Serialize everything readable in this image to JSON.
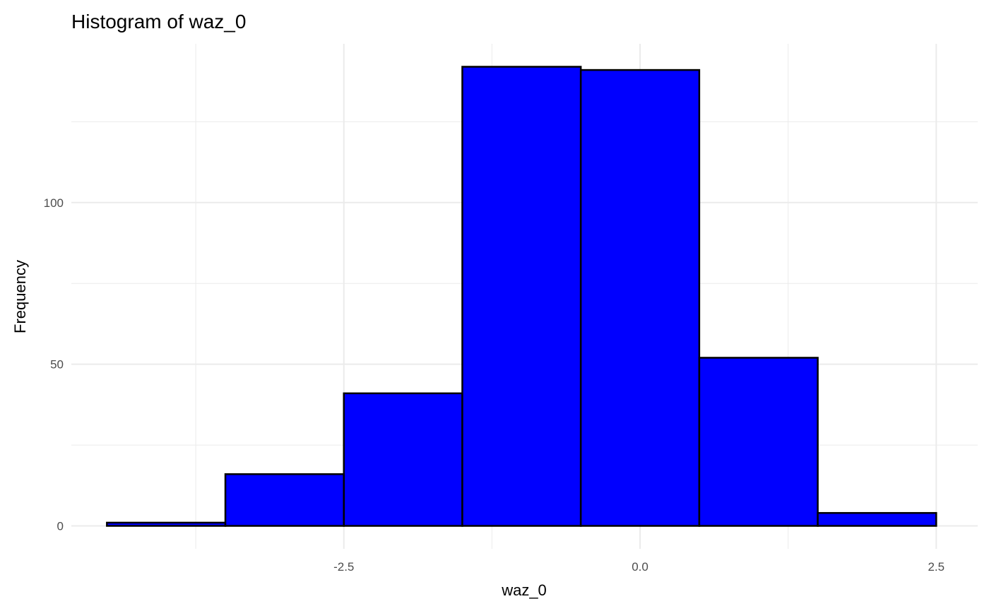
{
  "chart_data": {
    "type": "bar",
    "title": "Histogram of waz_0",
    "xlabel": "waz_0",
    "ylabel": "Frequency",
    "bins": [
      {
        "x_start": -4.5,
        "x_end": -3.5,
        "count": 1
      },
      {
        "x_start": -3.5,
        "x_end": -2.5,
        "count": 16
      },
      {
        "x_start": -2.5,
        "x_end": -1.5,
        "count": 41
      },
      {
        "x_start": -1.5,
        "x_end": -0.5,
        "count": 142
      },
      {
        "x_start": -0.5,
        "x_end": 0.5,
        "count": 141
      },
      {
        "x_start": 0.5,
        "x_end": 1.5,
        "count": 52
      },
      {
        "x_start": 1.5,
        "x_end": 2.5,
        "count": 4
      }
    ],
    "xlim": [
      -4.8,
      2.85
    ],
    "ylim": [
      -7.1,
      149.1
    ],
    "x_ticks": [
      -2.5,
      0.0,
      2.5
    ],
    "x_tick_labels": [
      "-2.5",
      "0.0",
      "2.5"
    ],
    "x_minor_ticks": [
      -3.75,
      -1.25,
      1.25
    ],
    "y_ticks": [
      0,
      50,
      100
    ],
    "y_tick_labels": [
      "0",
      "50",
      "100"
    ],
    "y_minor_ticks": [
      25,
      75,
      125
    ],
    "grid": true,
    "legend": "none",
    "colors": {
      "bar_fill": "#0000ff",
      "bar_outline": "#000000",
      "grid": "#ebebeb",
      "tick_text": "#4d4d4d",
      "background": "#ffffff"
    }
  }
}
